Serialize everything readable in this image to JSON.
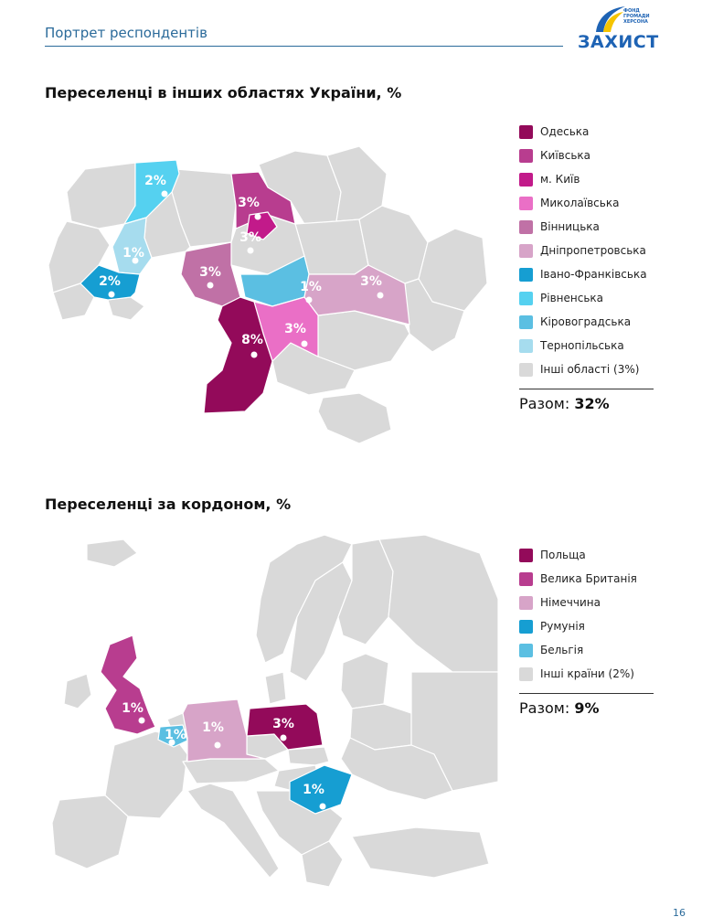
{
  "header": {
    "title": "Портрет респондентів"
  },
  "logo": {
    "small_lines": [
      "ФОНД",
      "ГРОМАДИ",
      "ХЕРСОНА"
    ],
    "word": "ЗАХИСТ",
    "colors": {
      "blue": "#1e63b4",
      "yellow": "#f5c400"
    }
  },
  "ukraine": {
    "title": "Переселенці в інших областях України, %",
    "legend": [
      {
        "name": "Одеська",
        "color": "#930a5a"
      },
      {
        "name": "Київська",
        "color": "#b83d8f"
      },
      {
        "name": "м. Київ",
        "color": "#c21a8a"
      },
      {
        "name": "Миколаївська",
        "color": "#ea6fc6"
      },
      {
        "name": "Вінницька",
        "color": "#c071a6"
      },
      {
        "name": "Дніпропетровська",
        "color": "#d7a4c8"
      },
      {
        "name": "Івано-Франківська",
        "color": "#169ed2"
      },
      {
        "name": "Рівненська",
        "color": "#55d1f0"
      },
      {
        "name": "Кіровоградська",
        "color": "#5bbfe2"
      },
      {
        "name": "Тернопільська",
        "color": "#a6dcee"
      },
      {
        "name": "Інші області (3%)",
        "color": "#d9d9d9"
      }
    ],
    "total_label": "Разом:",
    "total_value": "32%",
    "values": {
      "rivne": "2%",
      "kyiv_region": "3%",
      "kyiv_city": "3%",
      "ternopil": "1%",
      "ivano_frankivsk": "2%",
      "vinnytsia": "3%",
      "kirovohrad": "1%",
      "dnipro": "3%",
      "mykolaiv": "3%",
      "odesa": "8%"
    }
  },
  "abroad": {
    "title": "Переселенці за кордоном, %",
    "legend": [
      {
        "name": "Польща",
        "color": "#930a5a"
      },
      {
        "name": "Велика Британія",
        "color": "#b83d8f"
      },
      {
        "name": "Німеччина",
        "color": "#d7a4c8"
      },
      {
        "name": "Румунія",
        "color": "#169ed2"
      },
      {
        "name": "Бельгія",
        "color": "#5bbfe2"
      },
      {
        "name": "Інші країни (2%)",
        "color": "#d9d9d9"
      }
    ],
    "total_label": "Разом:",
    "total_value": "9%",
    "values": {
      "uk": "1%",
      "belgium": "1%",
      "germany": "1%",
      "poland": "3%",
      "romania": "1%"
    }
  },
  "page_number": "16"
}
